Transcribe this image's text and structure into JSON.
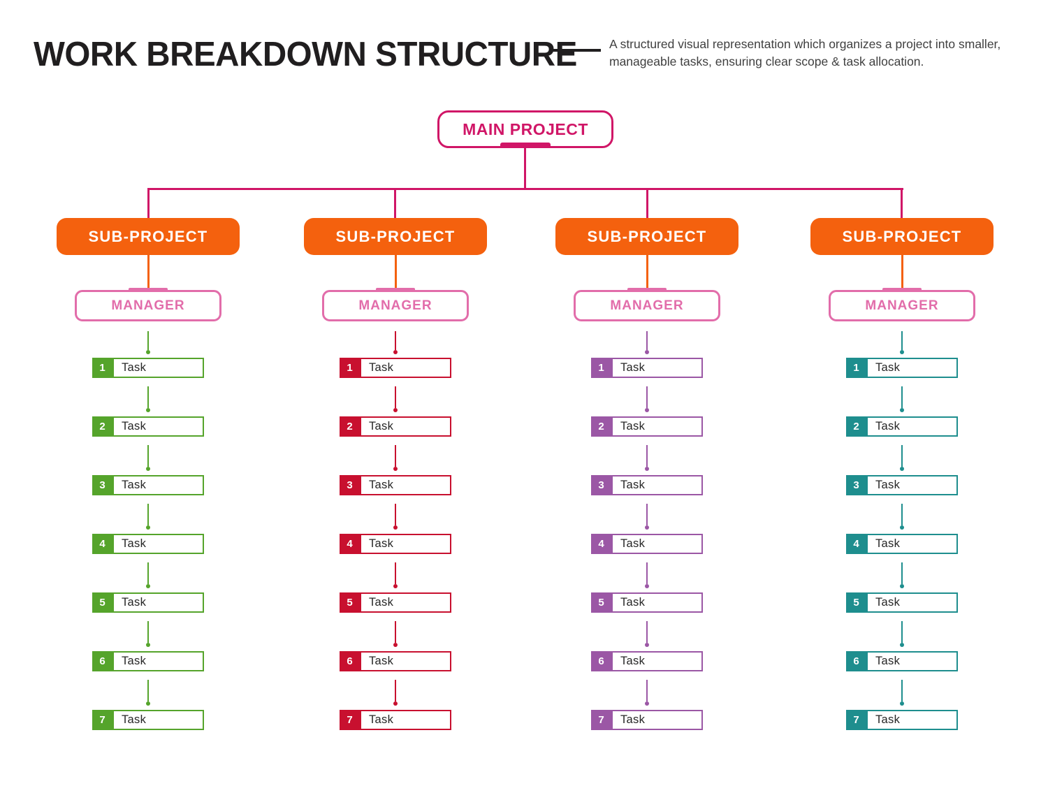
{
  "header": {
    "title": "WORK BREAKDOWN STRUCTURE",
    "description": "A structured visual representation which organizes a project into smaller, manageable tasks, ensuring clear scope & task allocation."
  },
  "colors": {
    "primary_pink": "#d01667",
    "orange": "#f4610e",
    "manager_pink": "#e26daa"
  },
  "tree": {
    "root_label": "MAIN PROJECT",
    "columns": [
      {
        "subproject_label": "SUB-PROJECT",
        "manager_label": "MANAGER",
        "accent_color": "#55a42b",
        "tasks": [
          {
            "num": "1",
            "label": "Task"
          },
          {
            "num": "2",
            "label": "Task"
          },
          {
            "num": "3",
            "label": "Task"
          },
          {
            "num": "4",
            "label": "Task"
          },
          {
            "num": "5",
            "label": "Task"
          },
          {
            "num": "6",
            "label": "Task"
          },
          {
            "num": "7",
            "label": "Task"
          }
        ]
      },
      {
        "subproject_label": "SUB-PROJECT",
        "manager_label": "MANAGER",
        "accent_color": "#c8102f",
        "tasks": [
          {
            "num": "1",
            "label": "Task"
          },
          {
            "num": "2",
            "label": "Task"
          },
          {
            "num": "3",
            "label": "Task"
          },
          {
            "num": "4",
            "label": "Task"
          },
          {
            "num": "5",
            "label": "Task"
          },
          {
            "num": "6",
            "label": "Task"
          },
          {
            "num": "7",
            "label": "Task"
          }
        ]
      },
      {
        "subproject_label": "SUB-PROJECT",
        "manager_label": "MANAGER",
        "accent_color": "#9b57a5",
        "tasks": [
          {
            "num": "1",
            "label": "Task"
          },
          {
            "num": "2",
            "label": "Task"
          },
          {
            "num": "3",
            "label": "Task"
          },
          {
            "num": "4",
            "label": "Task"
          },
          {
            "num": "5",
            "label": "Task"
          },
          {
            "num": "6",
            "label": "Task"
          },
          {
            "num": "7",
            "label": "Task"
          }
        ]
      },
      {
        "subproject_label": "SUB-PROJECT",
        "manager_label": "MANAGER",
        "accent_color": "#1e8e8e",
        "tasks": [
          {
            "num": "1",
            "label": "Task"
          },
          {
            "num": "2",
            "label": "Task"
          },
          {
            "num": "3",
            "label": "Task"
          },
          {
            "num": "4",
            "label": "Task"
          },
          {
            "num": "5",
            "label": "Task"
          },
          {
            "num": "6",
            "label": "Task"
          },
          {
            "num": "7",
            "label": "Task"
          }
        ]
      }
    ]
  }
}
